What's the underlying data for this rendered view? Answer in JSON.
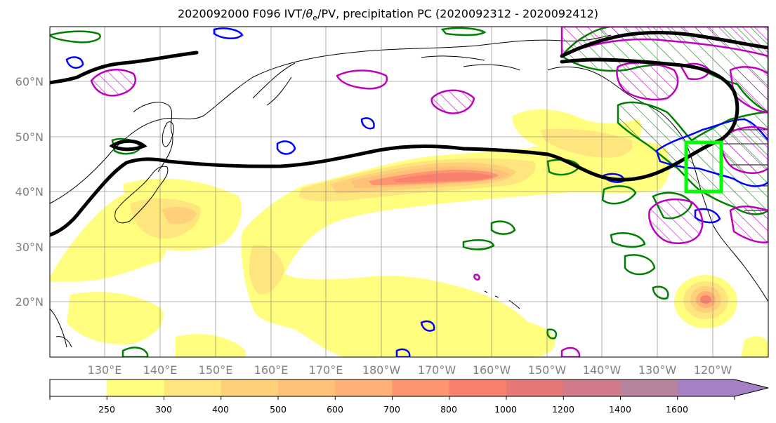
{
  "title": {
    "prefix": "2020092000 F096 IVT/",
    "theta": "θ",
    "theta_sub": "e",
    "suffix": "/PV, precipitation PC (2020092312 - 2020092412)"
  },
  "map": {
    "projection": "PlateCarree",
    "lon_range": "120°E to 115°W (Pacific-centred)",
    "lat_range": "10°N to 70°N",
    "lat_labels": [
      "60°N",
      "50°N",
      "40°N",
      "30°N",
      "20°N"
    ],
    "lon_labels": [
      "130°E",
      "140°E",
      "150°E",
      "160°E",
      "170°E",
      "180°W",
      "170°W",
      "160°W",
      "150°W",
      "140°W",
      "130°W",
      "120°W"
    ],
    "highlight_box": {
      "color": "#00ff00",
      "lon": [
        "125°W",
        "118°W"
      ],
      "lat": [
        "40°N",
        "49°N"
      ]
    },
    "contours": {
      "theta_e_thick": "#000000",
      "pv_positive": "#008000",
      "pv_negative": "#0000ff",
      "precip_pc": "#c000c0"
    }
  },
  "colorbar": {
    "levels": [
      "250",
      "300",
      "400",
      "500",
      "600",
      "700",
      "800",
      "1000",
      "1200",
      "1400",
      "1600"
    ],
    "colors": [
      "#ffffff",
      "#fffe7e",
      "#ffe57e",
      "#ffd07a",
      "#ffc078",
      "#ffb074",
      "#ff9470",
      "#f8806e",
      "#e57876",
      "#d07a8a",
      "#b8839f",
      "#a680c4"
    ],
    "extend": "max"
  }
}
